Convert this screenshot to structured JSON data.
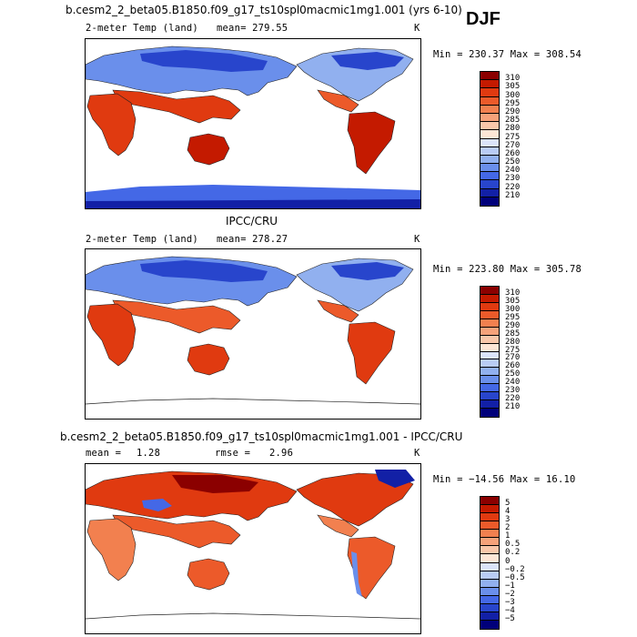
{
  "season": "DJF",
  "panels": [
    {
      "title": "b.cesm2_2_beta05.B1850.f09_g17_ts10spl0macmic1mg1.001 (yrs 6-10)",
      "variable": "2-meter Temp (land)",
      "mean": "mean= 279.55",
      "units": "K",
      "minmax": "Min = 230.37 Max = 308.54",
      "levels": [
        "310",
        "305",
        "300",
        "295",
        "290",
        "285",
        "280",
        "275",
        "270",
        "260",
        "250",
        "240",
        "230",
        "220",
        "210"
      ],
      "colors": [
        "#8b0000",
        "#c41a00",
        "#e03a10",
        "#ec5a2a",
        "#f2804f",
        "#f6a27a",
        "#f9c7aa",
        "#fde6d6",
        "#dbe4fa",
        "#b9ccf5",
        "#91b0ef",
        "#6a8feb",
        "#4468e6",
        "#2845cc",
        "#1220a6",
        "#00007a"
      ]
    },
    {
      "title": "IPCC/CRU",
      "variable": "2-meter Temp (land)",
      "mean": "mean= 278.27",
      "units": "K",
      "minmax": "Min = 223.80 Max = 305.78",
      "levels": [
        "310",
        "305",
        "300",
        "295",
        "290",
        "285",
        "280",
        "275",
        "270",
        "260",
        "250",
        "240",
        "230",
        "220",
        "210"
      ],
      "colors": [
        "#8b0000",
        "#c41a00",
        "#e03a10",
        "#ec5a2a",
        "#f2804f",
        "#f6a27a",
        "#f9c7aa",
        "#fde6d6",
        "#dbe4fa",
        "#b9ccf5",
        "#91b0ef",
        "#6a8feb",
        "#4468e6",
        "#2845cc",
        "#1220a6",
        "#00007a"
      ]
    },
    {
      "title": "b.cesm2_2_beta05.B1850.f09_g17_ts10spl0macmic1mg1.001 - IPCC/CRU",
      "mean_label": "mean =",
      "mean_value": "1.28",
      "rmse_label": "rmse =",
      "rmse_value": "2.96",
      "units": "K",
      "minmax": "Min = −14.56 Max =  16.10",
      "levels": [
        "5",
        "4",
        "3",
        "2",
        "1",
        "0.5",
        "0.2",
        "0",
        "−0.2",
        "−0.5",
        "−1",
        "−2",
        "−3",
        "−4",
        "−5"
      ],
      "colors": [
        "#8b0000",
        "#c41a00",
        "#e03a10",
        "#ec5a2a",
        "#f2804f",
        "#f6a27a",
        "#f9c7aa",
        "#fde6d6",
        "#dbe4fa",
        "#b9ccf5",
        "#91b0ef",
        "#6a8feb",
        "#4468e6",
        "#2845cc",
        "#1220a6",
        "#00007a"
      ]
    }
  ]
}
